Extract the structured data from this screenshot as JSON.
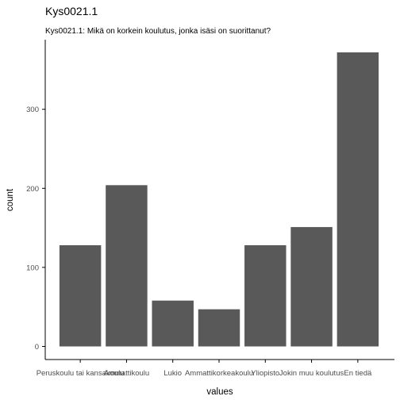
{
  "chart_data": {
    "type": "bar",
    "title": "Kys0021.1",
    "subtitle": "Kys0021.1: Mikä on korkein koulutus, jonka isäsi on suorittanut?",
    "xlabel": "values",
    "ylabel": "count",
    "categories": [
      "Peruskoulu tai kansakoulu",
      "Ammattikoulu",
      "Lukio",
      "Ammattikorkeakoulu",
      "Yliopisto",
      "Jokin muu koulutus",
      "En tiedä"
    ],
    "values": [
      128,
      204,
      58,
      47,
      128,
      151,
      372
    ],
    "ylim": [
      0,
      390
    ],
    "yticks": [
      0,
      100,
      200,
      300
    ],
    "grid": false,
    "bar_color": "#595959",
    "axis_color": "#000000"
  }
}
